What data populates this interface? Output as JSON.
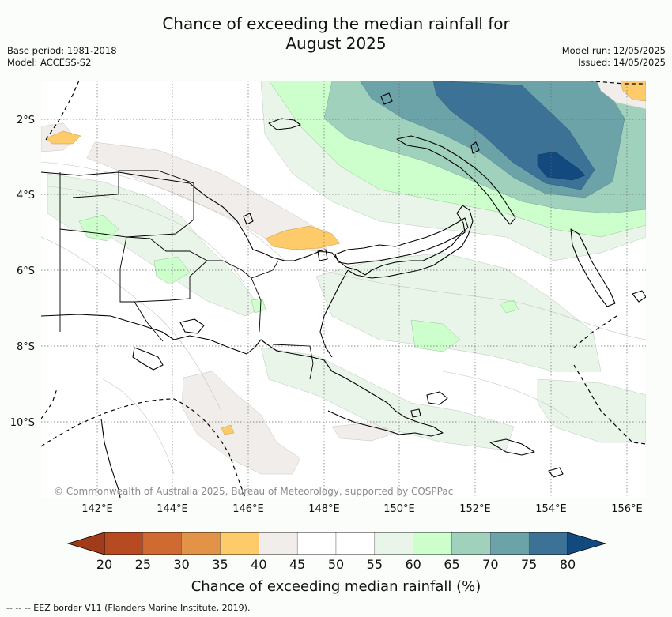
{
  "title": {
    "line1": "Chance of exceeding the median rainfall for",
    "line2": "August 2025"
  },
  "meta_left": {
    "base_period": "Base period: 1981-2018",
    "model": "Model: ACCESS-S2"
  },
  "meta_right": {
    "model_run": "Model run: 12/05/2025",
    "issued": "Issued: 14/05/2025"
  },
  "map": {
    "lat_labels": [
      "2°S",
      "4°S",
      "6°S",
      "8°S",
      "10°S"
    ],
    "lon_labels": [
      "142°E",
      "144°E",
      "146°E",
      "148°E",
      "150°E",
      "152°E",
      "154°E",
      "156°E"
    ],
    "copyright": "© Commonwealth of Australia 2025, Bureau of Meteorology, supported by COSPPac",
    "region": "Papua New Guinea"
  },
  "colorbar": {
    "title": "Chance of exceeding median rainfall (%)",
    "ticks": [
      "20",
      "25",
      "30",
      "35",
      "40",
      "45",
      "50",
      "55",
      "60",
      "65",
      "70",
      "75",
      "80"
    ],
    "colors": [
      "#a23b1a",
      "#b84a22",
      "#cf6a33",
      "#e39347",
      "#fecb6a",
      "#f0edea",
      "#ffffff",
      "#ffffff",
      "#eaf5ea",
      "#ccffcc",
      "#9fd1bc",
      "#6ba3a8",
      "#3c7296",
      "#124a80"
    ]
  },
  "footer": {
    "eez": "--  --  -- EEZ border V11 (Flanders Marine Institute, 2019)."
  }
}
